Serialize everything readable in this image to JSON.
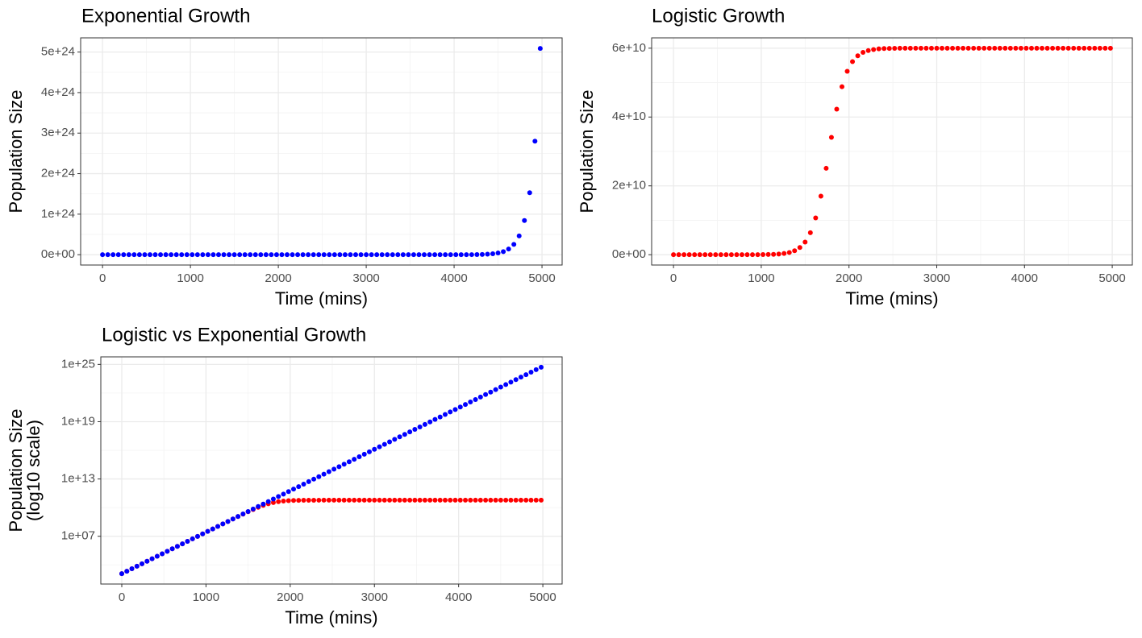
{
  "chart_data": [
    {
      "type": "scatter",
      "title": "Exponential Growth",
      "xlabel": "Time (mins)",
      "ylabel": "Population Size",
      "log_y": false,
      "grid": true,
      "x": [
        0,
        60,
        120,
        180,
        240,
        300,
        360,
        420,
        480,
        540,
        600,
        660,
        720,
        780,
        840,
        900,
        960,
        1020,
        1080,
        1140,
        1200,
        1260,
        1320,
        1380,
        1440,
        1500,
        1560,
        1620,
        1680,
        1740,
        1800,
        1860,
        1920,
        1980,
        2040,
        2100,
        2160,
        2220,
        2280,
        2340,
        2400,
        2460,
        2520,
        2580,
        2640,
        2700,
        2760,
        2820,
        2880,
        2940,
        3000,
        3060,
        3120,
        3180,
        3240,
        3300,
        3360,
        3420,
        3480,
        3540,
        3600,
        3660,
        3720,
        3780,
        3840,
        3900,
        3960,
        4020,
        4080,
        4140,
        4200,
        4260,
        4320,
        4380,
        4440,
        4500,
        4560,
        4620,
        4680,
        4740,
        4800,
        4860,
        4920,
        4980
      ],
      "series": [
        {
          "color": "#0000ff",
          "values": [
            1200,
            2190,
            3980,
            7260,
            13200,
            24100,
            43900,
            80000,
            146000,
            266000,
            484000,
            882000,
            1610000,
            2930000,
            5340000,
            9720000,
            17700000.0,
            32300000.0,
            58800000.0,
            107000000.0,
            195000000.0,
            356000000.0,
            648000000.0,
            1180000000.0,
            2150000000.0,
            3920000000.0,
            7150000000.0,
            13000000000.0,
            23700000000.0,
            43200000000.0,
            78800000000.0,
            144000000000.0,
            262000000000.0,
            477000000000.0,
            869000000000.0,
            1580000000000.0,
            2880000000000.0,
            5250000000000.0,
            9570000000000.0,
            17400000000000.0,
            31800000000000.0,
            57900000000000.0,
            106000000000000.0,
            192000000000000.0,
            350000000000000.0,
            638000000000000.0,
            1160000000000000.0,
            2120000000000000.0,
            3860000000000000.0,
            7040000000000000.0,
            1.28e+16,
            2.34e+16,
            4.26e+16,
            7.76e+16,
            1.41e+17,
            2.58e+17,
            4.69e+17,
            8.55e+17,
            1.56e+18,
            2.84e+18,
            5.17e+18,
            9.43e+18,
            1.72e+19,
            3.13e+19,
            5.7e+19,
            1.04e+20,
            1.89e+20,
            3.45e+20,
            6.29e+20,
            1.15e+21,
            2.09e+21,
            3.8e+21,
            6.93e+21,
            1.26e+22,
            2.3e+22,
            4.19e+22,
            7.64e+22,
            1.39e+23,
            2.54e+23,
            4.62e+23,
            8.42e+23,
            1.53e+24,
            2.8e+24,
            5.09e+24
          ]
        }
      ],
      "xlim": [
        -249,
        5229
      ],
      "xticks": [
        0,
        1000,
        2000,
        3000,
        4000,
        5000
      ],
      "minor_xticks": [
        500,
        1500,
        2500,
        3500,
        4500
      ],
      "ylim": [
        -2.55e+23,
        5.35e+24
      ],
      "yticks": [
        {
          "value": 0,
          "label": "0e+00"
        },
        {
          "value": 1e+24,
          "label": "1e+24"
        },
        {
          "value": 2e+24,
          "label": "2e+24"
        },
        {
          "value": 3e+24,
          "label": "3e+24"
        },
        {
          "value": 4e+24,
          "label": "4e+24"
        },
        {
          "value": 5e+24,
          "label": "5e+24"
        }
      ],
      "minor_yticks": [
        5e+23,
        1.5e+24,
        2.5e+24,
        3.5e+24,
        4.5e+24
      ]
    },
    {
      "type": "scatter",
      "title": "Logistic Growth",
      "xlabel": "Time (mins)",
      "ylabel": "Population Size",
      "log_y": false,
      "grid": true,
      "x": [
        0,
        60,
        120,
        180,
        240,
        300,
        360,
        420,
        480,
        540,
        600,
        660,
        720,
        780,
        840,
        900,
        960,
        1020,
        1080,
        1140,
        1200,
        1260,
        1320,
        1380,
        1440,
        1500,
        1560,
        1620,
        1680,
        1740,
        1800,
        1860,
        1920,
        1980,
        2040,
        2100,
        2160,
        2220,
        2280,
        2340,
        2400,
        2460,
        2520,
        2580,
        2640,
        2700,
        2760,
        2820,
        2880,
        2940,
        3000,
        3060,
        3120,
        3180,
        3240,
        3300,
        3360,
        3420,
        3480,
        3540,
        3600,
        3660,
        3720,
        3780,
        3840,
        3900,
        3960,
        4020,
        4080,
        4140,
        4200,
        4260,
        4320,
        4380,
        4440,
        4500,
        4560,
        4620,
        4680,
        4740,
        4800,
        4860,
        4920,
        4980
      ],
      "series": [
        {
          "color": "#ff0000",
          "values": [
            1200,
            2190,
            3980,
            7260,
            13200,
            24100,
            43900,
            80000,
            146000,
            266000,
            484000,
            882000,
            1610000,
            2930000,
            5340000,
            9720000,
            17700000.0,
            32300000.0,
            58800000.0,
            107000000.0,
            195000000.0,
            354000000.0,
            642000000.0,
            1160000000.0,
            2080000000.0,
            3680000000.0,
            6390000000.0,
            10700000000.0,
            17000000000.0,
            25100000000.0,
            34100000000.0,
            42300000000.0,
            48800000000.0,
            53300000000.0,
            56100000000.0,
            57800000000.0,
            58800000000.0,
            59300000000.0,
            59600000000.0,
            59800000000.0,
            59900000000.0,
            59940000000.0,
            59970000000.0,
            59980000000.0,
            59990000000.0,
            60000000000.0,
            60000000000.0,
            60000000000.0,
            60000000000.0,
            60000000000.0,
            60000000000.0,
            60000000000.0,
            60000000000.0,
            60000000000.0,
            60000000000.0,
            60000000000.0,
            60000000000.0,
            60000000000.0,
            60000000000.0,
            60000000000.0,
            60000000000.0,
            60000000000.0,
            60000000000.0,
            60000000000.0,
            60000000000.0,
            60000000000.0,
            60000000000.0,
            60000000000.0,
            60000000000.0,
            60000000000.0,
            60000000000.0,
            60000000000.0,
            60000000000.0,
            60000000000.0,
            60000000000.0,
            60000000000.0,
            60000000000.0,
            60000000000.0,
            60000000000.0,
            60000000000.0,
            60000000000.0,
            60000000000.0,
            60000000000.0,
            60000000000.0
          ]
        }
      ],
      "xlim": [
        -249,
        5229
      ],
      "xticks": [
        0,
        1000,
        2000,
        3000,
        4000,
        5000
      ],
      "minor_xticks": [
        500,
        1500,
        2500,
        3500,
        4500
      ],
      "ylim": [
        -3000000000.0,
        63000000000.0
      ],
      "yticks": [
        {
          "value": 0,
          "label": "0e+00"
        },
        {
          "value": 20000000000.0,
          "label": "2e+10"
        },
        {
          "value": 40000000000.0,
          "label": "4e+10"
        },
        {
          "value": 60000000000.0,
          "label": "6e+10"
        }
      ],
      "minor_yticks": [
        10000000000.0,
        30000000000.0,
        50000000000.0
      ]
    },
    {
      "type": "scatter",
      "title": "Logistic vs Exponential Growth",
      "xlabel": "Time (mins)",
      "ylabel": [
        "Population Size",
        "(log10 scale)"
      ],
      "log_y": true,
      "grid": true,
      "x": [
        0,
        60,
        120,
        180,
        240,
        300,
        360,
        420,
        480,
        540,
        600,
        660,
        720,
        780,
        840,
        900,
        960,
        1020,
        1080,
        1140,
        1200,
        1260,
        1320,
        1380,
        1440,
        1500,
        1560,
        1620,
        1680,
        1740,
        1800,
        1860,
        1920,
        1980,
        2040,
        2100,
        2160,
        2220,
        2280,
        2340,
        2400,
        2460,
        2520,
        2580,
        2640,
        2700,
        2760,
        2820,
        2880,
        2940,
        3000,
        3060,
        3120,
        3180,
        3240,
        3300,
        3360,
        3420,
        3480,
        3540,
        3600,
        3660,
        3720,
        3780,
        3840,
        3900,
        3960,
        4020,
        4080,
        4140,
        4200,
        4260,
        4320,
        4380,
        4440,
        4500,
        4560,
        4620,
        4680,
        4740,
        4800,
        4860,
        4920,
        4980
      ],
      "series": [
        {
          "color": "#ff0000",
          "values": [
            1200,
            2190,
            3980,
            7260,
            13200,
            24100,
            43900,
            80000,
            146000,
            266000,
            484000,
            882000,
            1610000,
            2930000,
            5340000,
            9720000,
            17700000.0,
            32300000.0,
            58800000.0,
            107000000.0,
            195000000.0,
            354000000.0,
            642000000.0,
            1160000000.0,
            2080000000.0,
            3680000000.0,
            6390000000.0,
            10700000000.0,
            17000000000.0,
            25100000000.0,
            34100000000.0,
            42300000000.0,
            48800000000.0,
            53300000000.0,
            56100000000.0,
            57800000000.0,
            58800000000.0,
            59300000000.0,
            59600000000.0,
            59800000000.0,
            59900000000.0,
            59940000000.0,
            59970000000.0,
            59980000000.0,
            59990000000.0,
            60000000000.0,
            60000000000.0,
            60000000000.0,
            60000000000.0,
            60000000000.0,
            60000000000.0,
            60000000000.0,
            60000000000.0,
            60000000000.0,
            60000000000.0,
            60000000000.0,
            60000000000.0,
            60000000000.0,
            60000000000.0,
            60000000000.0,
            60000000000.0,
            60000000000.0,
            60000000000.0,
            60000000000.0,
            60000000000.0,
            60000000000.0,
            60000000000.0,
            60000000000.0,
            60000000000.0,
            60000000000.0,
            60000000000.0,
            60000000000.0,
            60000000000.0,
            60000000000.0,
            60000000000.0,
            60000000000.0,
            60000000000.0,
            60000000000.0,
            60000000000.0,
            60000000000.0,
            60000000000.0,
            60000000000.0,
            60000000000.0,
            60000000000.0
          ]
        },
        {
          "color": "#0000ff",
          "values": [
            1200,
            2190,
            3980,
            7260,
            13200,
            24100,
            43900,
            80000,
            146000,
            266000,
            484000,
            882000,
            1610000,
            2930000,
            5340000,
            9720000,
            17700000.0,
            32300000.0,
            58800000.0,
            107000000.0,
            195000000.0,
            356000000.0,
            648000000.0,
            1180000000.0,
            2150000000.0,
            3920000000.0,
            7150000000.0,
            13000000000.0,
            23700000000.0,
            43200000000.0,
            78800000000.0,
            144000000000.0,
            262000000000.0,
            477000000000.0,
            869000000000.0,
            1580000000000.0,
            2880000000000.0,
            5250000000000.0,
            9570000000000.0,
            17400000000000.0,
            31800000000000.0,
            57900000000000.0,
            106000000000000.0,
            192000000000000.0,
            350000000000000.0,
            638000000000000.0,
            1160000000000000.0,
            2120000000000000.0,
            3860000000000000.0,
            7040000000000000.0,
            1.28e+16,
            2.34e+16,
            4.26e+16,
            7.76e+16,
            1.41e+17,
            2.58e+17,
            4.69e+17,
            8.55e+17,
            1.56e+18,
            2.84e+18,
            5.17e+18,
            9.43e+18,
            1.72e+19,
            3.13e+19,
            5.7e+19,
            1.04e+20,
            1.89e+20,
            3.45e+20,
            6.29e+20,
            1.15e+21,
            2.09e+21,
            3.8e+21,
            6.93e+21,
            1.26e+22,
            2.3e+22,
            4.19e+22,
            7.64e+22,
            1.39e+23,
            2.54e+23,
            4.62e+23,
            8.42e+23,
            1.53e+24,
            2.8e+24,
            5.09e+24
          ]
        }
      ],
      "xlim": [
        -249,
        5229
      ],
      "xticks": [
        0,
        1000,
        2000,
        3000,
        4000,
        5000
      ],
      "minor_xticks": [
        500,
        1500,
        2500,
        3500,
        4500
      ],
      "ylim": [
        99.5,
        6.14e+25
      ],
      "yticks": [
        {
          "value": 10000000.0,
          "label": "1e+07"
        },
        {
          "value": 10000000000000.0,
          "label": "1e+13"
        },
        {
          "value": 1e+19,
          "label": "1e+19"
        },
        {
          "value": 1e+25,
          "label": "1e+25"
        }
      ],
      "minor_yticks": [
        10000.0,
        10000000000.0,
        1e+16,
        1e+22
      ]
    }
  ]
}
